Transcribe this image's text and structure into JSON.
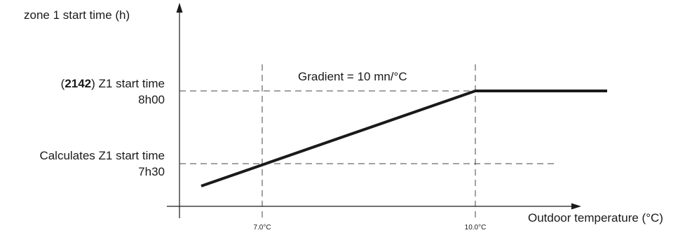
{
  "y_axis_label": "zone 1 start time (h)",
  "x_axis_label": "Outdoor temperature (°C)",
  "gradient_label": "Gradient = 10 mn/°C",
  "upper_level": {
    "param_open": "(",
    "param_code": "2142",
    "param_close": ")",
    "title": " Z1 start time",
    "value": "8h00"
  },
  "lower_level": {
    "title": "Calculates Z1 start time",
    "value": "7h30"
  },
  "x_ticks": [
    "7.0°C",
    "10.0°C"
  ],
  "line_color": "#1a1a1a"
}
